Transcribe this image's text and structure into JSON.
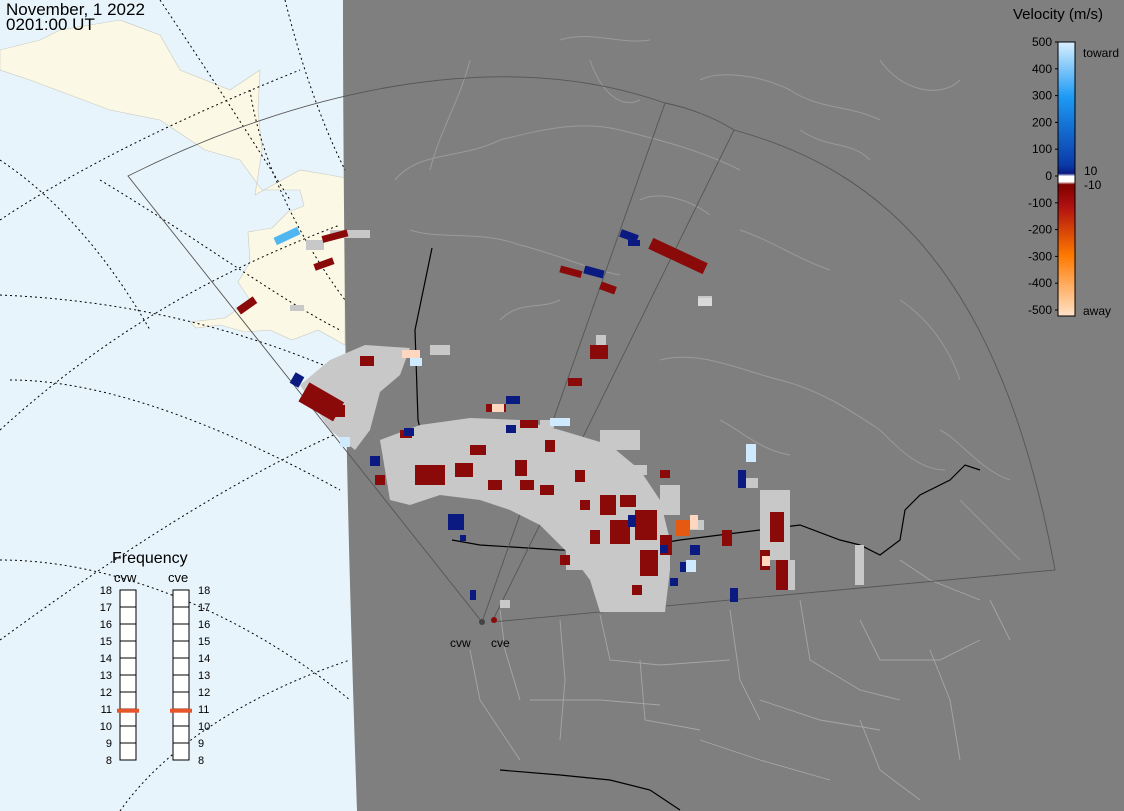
{
  "title": {
    "date": "November, 1 2022",
    "time": "0201:00 UT"
  },
  "colors": {
    "ocean": "#e8f4fb",
    "land": "#fbf8e6",
    "night": "#7f7f7f",
    "ground_scatter": "#c8c8c8",
    "frequency_marker": "#e8542a"
  },
  "velocity_scale": {
    "title": "Velocity (m/s)",
    "ticks": [
      "500",
      "400",
      "300",
      "200",
      "100",
      "0",
      "-100",
      "-200",
      "-300",
      "-400",
      "-500"
    ],
    "threshold_labels": [
      "10",
      "-10"
    ],
    "toward_label": "toward",
    "away_label": "away"
  },
  "frequency": {
    "title": "Frequency",
    "ticks": [
      "18",
      "17",
      "16",
      "15",
      "14",
      "13",
      "12",
      "11",
      "10",
      "9",
      "8"
    ],
    "radars": [
      {
        "name": "cvw",
        "value": 10.9
      },
      {
        "name": "cve",
        "value": 10.9
      }
    ]
  },
  "radar_sites": [
    {
      "code": "cvw"
    },
    {
      "code": "cve"
    }
  ]
}
